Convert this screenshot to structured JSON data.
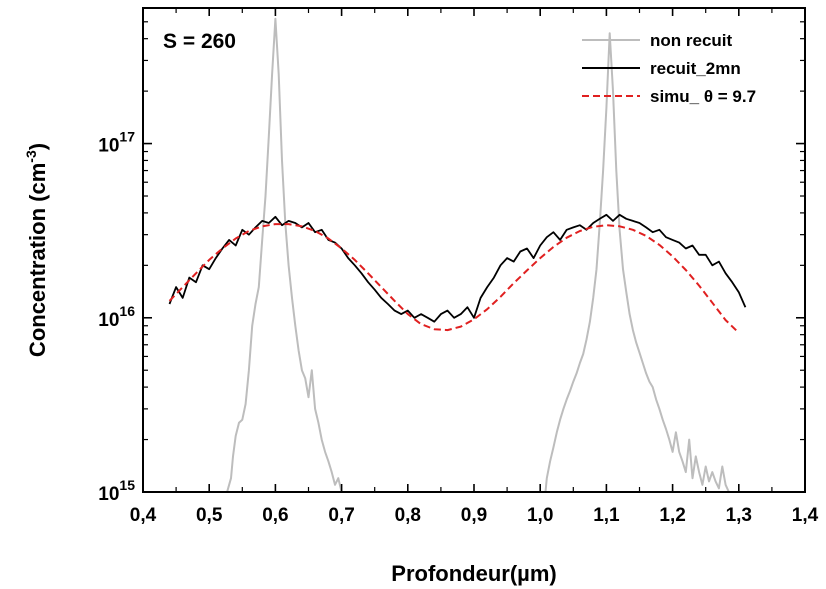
{
  "chart_data": {
    "type": "line",
    "title": "",
    "annotation": "S = 260",
    "xlabel": "Profondeur(µm)",
    "ylabel_main": "Concentration (cm",
    "ylabel_sup": "-3",
    "ylabel_end": ")",
    "xlim": [
      0.4,
      1.4
    ],
    "ylim": [
      1000000000000000.0,
      6e+17
    ],
    "yscale": "log",
    "x_ticks": [
      "0,4",
      "0,5",
      "0,6",
      "0,7",
      "0,8",
      "0,9",
      "1,0",
      "1,1",
      "1,2",
      "1,3",
      "1,4"
    ],
    "x_tick_values": [
      0.4,
      0.5,
      0.6,
      0.7,
      0.8,
      0.9,
      1.0,
      1.1,
      1.2,
      1.3,
      1.4
    ],
    "y_ticks": [
      {
        "base": "10",
        "exp": "15",
        "value": 1000000000000000.0
      },
      {
        "base": "10",
        "exp": "16",
        "value": 1e+16
      },
      {
        "base": "10",
        "exp": "17",
        "value": 1e+17
      }
    ],
    "legend_position": "top-right",
    "grid": false,
    "series": [
      {
        "name": "non recuit",
        "color": "#bdbdbd",
        "style": "solid",
        "x": [
          0.527,
          0.533,
          0.536,
          0.54,
          0.545,
          0.55,
          0.555,
          0.56,
          0.565,
          0.57,
          0.575,
          0.58,
          0.585,
          0.59,
          0.595,
          0.6,
          0.605,
          0.61,
          0.615,
          0.62,
          0.625,
          0.63,
          0.635,
          0.64,
          0.645,
          0.65,
          0.655,
          0.66,
          0.665,
          0.67,
          0.675,
          0.68,
          0.685,
          0.69,
          0.695,
          0.7,
          0.704,
          1.008,
          1.01,
          1.015,
          1.02,
          1.025,
          1.03,
          1.035,
          1.04,
          1.045,
          1.05,
          1.055,
          1.06,
          1.065,
          1.07,
          1.075,
          1.08,
          1.085,
          1.09,
          1.095,
          1.1,
          1.105,
          1.11,
          1.115,
          1.12,
          1.125,
          1.13,
          1.135,
          1.14,
          1.145,
          1.15,
          1.155,
          1.16,
          1.165,
          1.17,
          1.175,
          1.18,
          1.185,
          1.19,
          1.195,
          1.2,
          1.205,
          1.21,
          1.215,
          1.22,
          1.225,
          1.23,
          1.235,
          1.24,
          1.245,
          1.25,
          1.255,
          1.26,
          1.265,
          1.27,
          1.275,
          1.28,
          1.285
        ],
        "y": [
          1000000000000000.0,
          1200000000000000.0,
          1600000000000000.0,
          2100000000000000.0,
          2500000000000000.0,
          2600000000000000.0,
          3200000000000000.0,
          5000000000000000.0,
          9000000000000000.0,
          1.2e+16,
          1.5e+16,
          2.8e+16,
          5e+16,
          1.1e+17,
          2.5e+17,
          5.2e+17,
          2.5e+17,
          8e+16,
          3.5e+16,
          2e+16,
          1.3e+16,
          9000000000000000.0,
          6500000000000000.0,
          5000000000000000.0,
          4500000000000000.0,
          3500000000000000.0,
          5000000000000000.0,
          3000000000000000.0,
          2500000000000000.0,
          2000000000000000.0,
          1700000000000000.0,
          1500000000000000.0,
          1300000000000000.0,
          1100000000000000.0,
          1200000000000000.0,
          1000000000000000.0,
          1000000000000000.0,
          1000000000000000.0,
          1200000000000000.0,
          1500000000000000.0,
          1800000000000000.0,
          2200000000000000.0,
          2600000000000000.0,
          3000000000000000.0,
          3400000000000000.0,
          3800000000000000.0,
          4300000000000000.0,
          4800000000000000.0,
          5500000000000000.0,
          6200000000000000.0,
          7500000000000000.0,
          9500000000000000.0,
          1.3e+16,
          1.9e+16,
          3.5e+16,
          7e+16,
          1.6e+17,
          4.3e+17,
          2e+17,
          7e+16,
          3.2e+16,
          1.9e+16,
          1.4e+16,
          1.05e+16,
          8500000000000000.0,
          7200000000000000.0,
          6300000000000000.0,
          5500000000000000.0,
          4800000000000000.0,
          4300000000000000.0,
          4000000000000000.0,
          3400000000000000.0,
          3000000000000000.0,
          2600000000000000.0,
          2300000000000000.0,
          2000000000000000.0,
          1700000000000000.0,
          2200000000000000.0,
          1700000000000000.0,
          1500000000000000.0,
          1300000000000000.0,
          2000000000000000.0,
          1200000000000000.0,
          1600000000000000.0,
          1300000000000000.0,
          1100000000000000.0,
          1400000000000000.0,
          1150000000000000.0,
          1300000000000000.0,
          1150000000000000.0,
          1050000000000000.0,
          1400000000000000.0,
          1100000000000000.0,
          1000000000000000.0
        ]
      },
      {
        "name": "recuit_2mn",
        "color": "#000000",
        "style": "solid",
        "x": [
          0.44,
          0.45,
          0.46,
          0.47,
          0.48,
          0.49,
          0.5,
          0.51,
          0.52,
          0.53,
          0.54,
          0.55,
          0.56,
          0.57,
          0.58,
          0.59,
          0.6,
          0.61,
          0.62,
          0.63,
          0.64,
          0.65,
          0.66,
          0.67,
          0.68,
          0.69,
          0.7,
          0.71,
          0.72,
          0.73,
          0.74,
          0.75,
          0.76,
          0.77,
          0.78,
          0.79,
          0.8,
          0.81,
          0.82,
          0.83,
          0.84,
          0.85,
          0.86,
          0.87,
          0.88,
          0.89,
          0.9,
          0.91,
          0.92,
          0.93,
          0.94,
          0.95,
          0.96,
          0.97,
          0.98,
          0.99,
          1.0,
          1.01,
          1.02,
          1.03,
          1.04,
          1.05,
          1.06,
          1.07,
          1.08,
          1.09,
          1.1,
          1.11,
          1.12,
          1.13,
          1.14,
          1.15,
          1.16,
          1.17,
          1.18,
          1.19,
          1.2,
          1.21,
          1.22,
          1.23,
          1.24,
          1.25,
          1.26,
          1.27,
          1.28,
          1.29,
          1.3,
          1.31
        ],
        "y": [
          1.2e+16,
          1.5e+16,
          1.3e+16,
          1.7e+16,
          1.6e+16,
          2e+16,
          1.9e+16,
          2.2e+16,
          2.5e+16,
          2.8e+16,
          2.6e+16,
          3.2e+16,
          3e+16,
          3.3e+16,
          3.6e+16,
          3.5e+16,
          3.8e+16,
          3.4e+16,
          3.6e+16,
          3.5e+16,
          3.3e+16,
          3.5e+16,
          3.1e+16,
          3.2e+16,
          2.8e+16,
          2.7e+16,
          2.5e+16,
          2.2e+16,
          2e+16,
          1.8e+16,
          1.6e+16,
          1.45e+16,
          1.3e+16,
          1.2e+16,
          1.1e+16,
          1.05e+16,
          1.1e+16,
          1e+16,
          1.05e+16,
          1e+16,
          9500000000000000.0,
          1.05e+16,
          1.1e+16,
          1e+16,
          1.05e+16,
          1.15e+16,
          1e+16,
          1.3e+16,
          1.5e+16,
          1.7e+16,
          2e+16,
          2.2e+16,
          2.1e+16,
          2.4e+16,
          2.5e+16,
          2.2e+16,
          2.6e+16,
          2.9e+16,
          3.1e+16,
          2.8e+16,
          3.2e+16,
          3.3e+16,
          3.4e+16,
          3.2e+16,
          3.5e+16,
          3.7e+16,
          3.9e+16,
          3.6e+16,
          3.9e+16,
          3.7e+16,
          3.6e+16,
          3.5e+16,
          3.3e+16,
          3.1e+16,
          3.2e+16,
          2.9e+16,
          2.8e+16,
          2.7e+16,
          2.5e+16,
          2.6e+16,
          2.3e+16,
          2.3e+16,
          2e+16,
          2.1e+16,
          1.8e+16,
          1.6e+16,
          1.4e+16,
          1.15e+16
        ]
      },
      {
        "name": "simu_ θ = 9.7",
        "color": "#e02020",
        "style": "dashed",
        "x": [
          0.44,
          0.46,
          0.48,
          0.5,
          0.52,
          0.54,
          0.56,
          0.58,
          0.6,
          0.62,
          0.64,
          0.66,
          0.68,
          0.7,
          0.72,
          0.74,
          0.76,
          0.78,
          0.8,
          0.82,
          0.84,
          0.86,
          0.88,
          0.9,
          0.92,
          0.94,
          0.96,
          0.98,
          1.0,
          1.02,
          1.04,
          1.06,
          1.08,
          1.1,
          1.12,
          1.14,
          1.16,
          1.18,
          1.2,
          1.22,
          1.24,
          1.26,
          1.28,
          1.3
        ],
        "y": [
          1.25e+16,
          1.5e+16,
          1.8e+16,
          2.15e+16,
          2.5e+16,
          2.85e+16,
          3.15e+16,
          3.35e+16,
          3.45e+16,
          3.45e+16,
          3.35e+16,
          3.15e+16,
          2.85e+16,
          2.5e+16,
          2.15e+16,
          1.8e+16,
          1.5e+16,
          1.25e+16,
          1.05e+16,
          9200000000000000.0,
          8600000000000000.0,
          8500000000000000.0,
          8900000000000000.0,
          9800000000000000.0,
          1.12e+16,
          1.32e+16,
          1.58e+16,
          1.87e+16,
          2.2e+16,
          2.55e+16,
          2.88e+16,
          3.15e+16,
          3.33e+16,
          3.4e+16,
          3.35e+16,
          3.2e+16,
          2.95e+16,
          2.62e+16,
          2.25e+16,
          1.88e+16,
          1.53e+16,
          1.22e+16,
          9700000000000000.0,
          8200000000000000.0
        ]
      }
    ]
  }
}
